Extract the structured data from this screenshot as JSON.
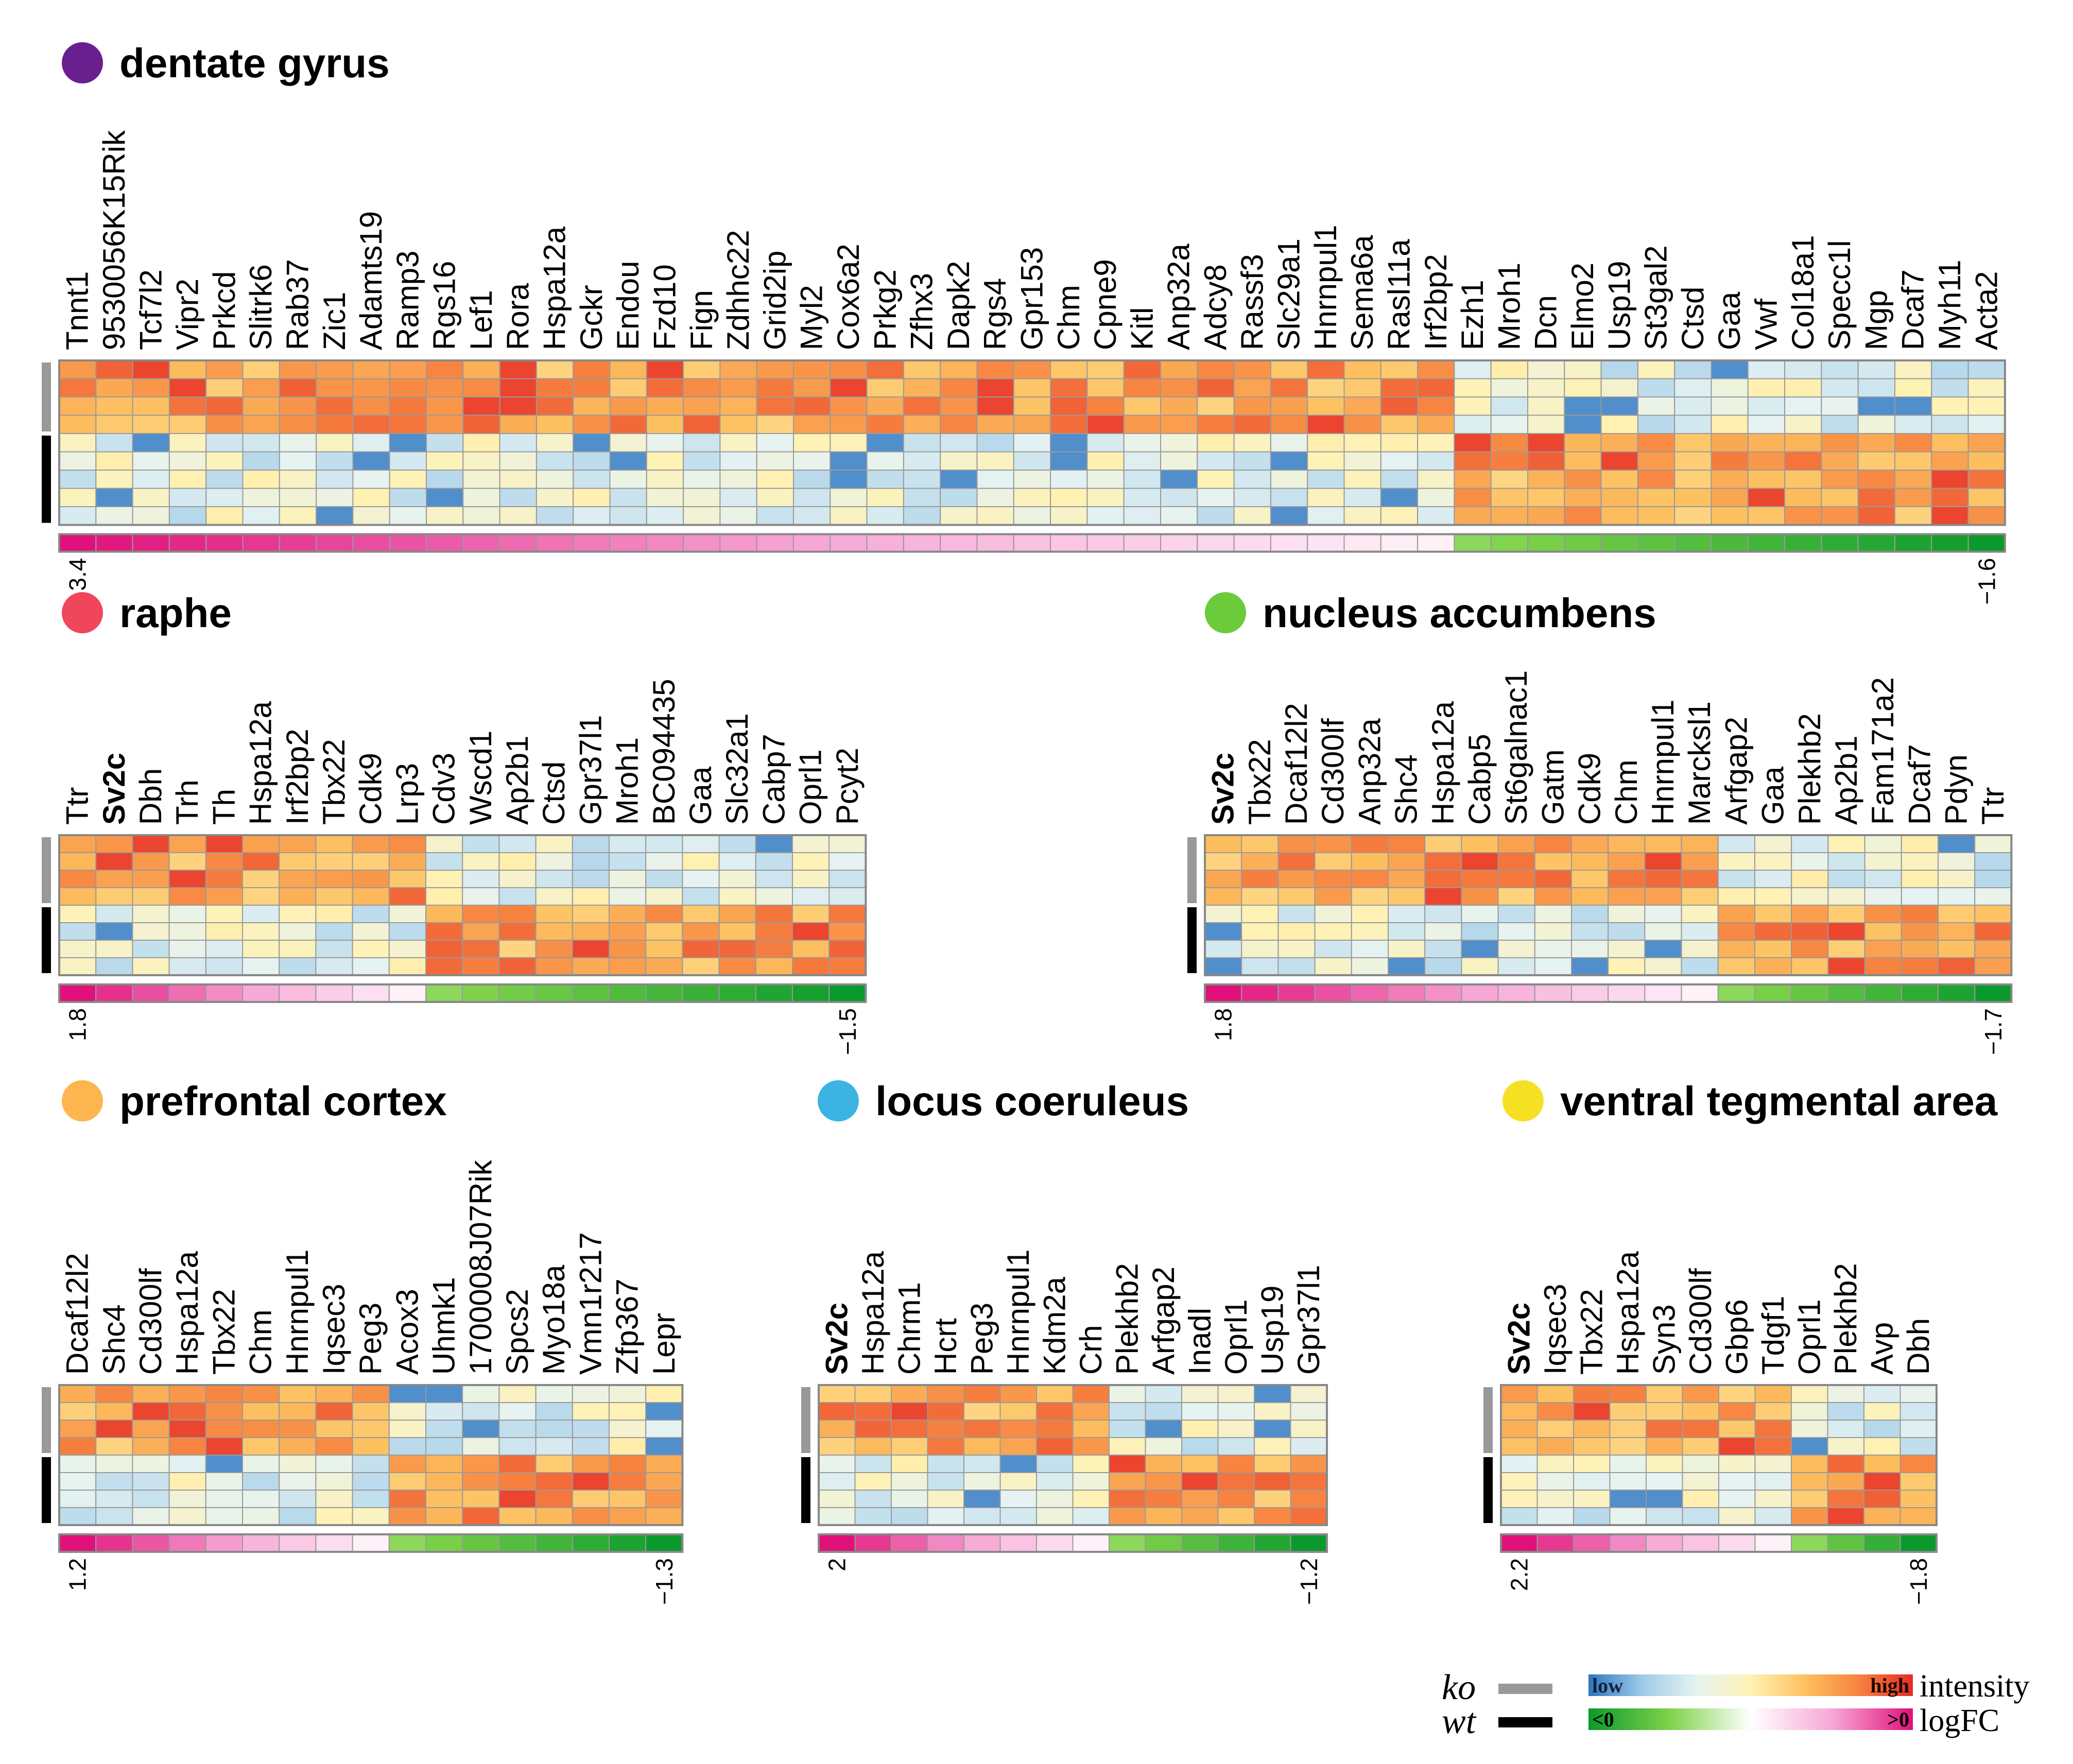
{
  "colors": {
    "intensity_scale": [
      "#2f74c0",
      "#9fcbe8",
      "#e6f3f2",
      "#fff2b4",
      "#fdc160",
      "#f78240",
      "#e62b27"
    ],
    "logfc_scale": [
      "#0a9a2c",
      "#7fd24a",
      "#ffffff",
      "#f7a8d6",
      "#e0117a"
    ],
    "ko_bar": "#999999",
    "wt_bar": "#000000",
    "cell_border": "#9a9a9a"
  },
  "legend": {
    "ko_label": "ko",
    "wt_label": "wt",
    "low_label": "low",
    "high_label": "high",
    "intensity_label": "intensity",
    "neg_label": "<0",
    "pos_label": ">0",
    "logfc_label": "logFC"
  },
  "chart_data": [
    {
      "type": "heatmap",
      "title": "dentate gyrus",
      "title_color": "#6a1f8f",
      "genes": [
        "Tnnt1",
        "9530056K15Rik",
        "Tcf7l2",
        "Vipr2",
        "Prkcd",
        "Slitrk6",
        "Rab37",
        "Zic1",
        "Adamts19",
        "Ramp3",
        "Rgs16",
        "Lef1",
        "Rora",
        "Hspa12a",
        "Gckr",
        "Endou",
        "Fzd10",
        "Fign",
        "Zdhhc22",
        "Grid2ip",
        "Myl2",
        "Cox6a2",
        "Prkg2",
        "Zfhx3",
        "Dapk2",
        "Rgs4",
        "Gpr153",
        "Chm",
        "Cpne9",
        "Kitl",
        "Anp32a",
        "Adcy8",
        "Rassf3",
        "Slc29a1",
        "Hnrnpul1",
        "Sema6a",
        "Rasl11a",
        "Irf2bp2",
        "Ezh1",
        "Mroh1",
        "Dcn",
        "Elmo2",
        "Usp19",
        "St3gal2",
        "Ctsd",
        "Gaa",
        "Vwf",
        "Col18a1",
        "Specc1l",
        "Mgp",
        "Dcaf7",
        "Myh11",
        "Acta2"
      ],
      "bold_genes": [],
      "n_up": 38,
      "groups": [
        "ko",
        "ko",
        "ko",
        "ko",
        "wt",
        "wt",
        "wt",
        "wt",
        "wt"
      ],
      "logfc_range": [
        3.4,
        -1.6
      ],
      "logfc_labels": [
        "3.4",
        "−1.6"
      ]
    },
    {
      "type": "heatmap",
      "title": "raphe",
      "title_color": "#f0465b",
      "genes": [
        "Ttr",
        "Sv2c",
        "Dbh",
        "Trh",
        "Th",
        "Hspa12a",
        "Irf2bp2",
        "Tbx22",
        "Cdk9",
        "Lrp3",
        "Cdv3",
        "Wscd1",
        "Ap2b1",
        "Ctsd",
        "Gpr37l1",
        "Mroh1",
        "BC094435",
        "Gaa",
        "Slc32a1",
        "Cabp7",
        "Oprl1",
        "Pcyt2"
      ],
      "bold_genes": [
        "Sv2c"
      ],
      "n_up": 10,
      "groups": [
        "ko",
        "ko",
        "ko",
        "ko",
        "wt",
        "wt",
        "wt",
        "wt"
      ],
      "logfc_range": [
        1.8,
        -1.5
      ],
      "logfc_labels": [
        "1.8",
        "−1.5"
      ]
    },
    {
      "type": "heatmap",
      "title": "nucleus accumbens",
      "title_color": "#6ccb3a",
      "genes": [
        "Sv2c",
        "Tbx22",
        "Dcaf12l2",
        "Cd300lf",
        "Anp32a",
        "Shc4",
        "Hspa12a",
        "Cabp5",
        "St6galnac1",
        "Gatm",
        "Cdk9",
        "Chm",
        "Hnrnpul1",
        "Marcksl1",
        "Arfgap2",
        "Gaa",
        "Plekhb2",
        "Ap2b1",
        "Fam171a2",
        "Dcaf7",
        "Pdyn",
        "Ttr"
      ],
      "bold_genes": [
        "Sv2c"
      ],
      "n_up": 14,
      "groups": [
        "ko",
        "ko",
        "ko",
        "ko",
        "wt",
        "wt",
        "wt",
        "wt"
      ],
      "logfc_range": [
        1.8,
        -1.7
      ],
      "logfc_labels": [
        "1.8",
        "−1.7"
      ]
    },
    {
      "type": "heatmap",
      "title": "prefrontal cortex",
      "title_color": "#fdb54f",
      "genes": [
        "Dcaf12l2",
        "Shc4",
        "Cd300lf",
        "Hspa12a",
        "Tbx22",
        "Chm",
        "Hnrnpul1",
        "Iqsec3",
        "Peg3",
        "Acox3",
        "Uhmk1",
        "1700008J07Rik",
        "Spcs2",
        "Myo18a",
        "Vmn1r217",
        "Zfp367",
        "Lepr"
      ],
      "bold_genes": [],
      "n_up": 9,
      "groups": [
        "ko",
        "ko",
        "ko",
        "ko",
        "wt",
        "wt",
        "wt",
        "wt"
      ],
      "logfc_range": [
        1.2,
        -1.3
      ],
      "logfc_labels": [
        "1.2",
        "−1.3"
      ]
    },
    {
      "type": "heatmap",
      "title": "locus coeruleus",
      "title_color": "#3bb4e3",
      "genes": [
        "Sv2c",
        "Hspa12a",
        "Chrm1",
        "Hcrt",
        "Peg3",
        "Hnrnpul1",
        "Kdm2a",
        "Crh",
        "Plekhb2",
        "Arfgap2",
        "Inadl",
        "Oprl1",
        "Usp19",
        "Gpr37l1"
      ],
      "bold_genes": [
        "Sv2c"
      ],
      "n_up": 8,
      "groups": [
        "ko",
        "ko",
        "ko",
        "ko",
        "wt",
        "wt",
        "wt",
        "wt"
      ],
      "logfc_range": [
        2,
        -1.2
      ],
      "logfc_labels": [
        "2",
        "−1.2"
      ]
    },
    {
      "type": "heatmap",
      "title": "ventral tegmental area",
      "title_color": "#f6e024",
      "genes": [
        "Sv2c",
        "Iqsec3",
        "Tbx22",
        "Hspa12a",
        "Syn3",
        "Cd300lf",
        "Gbp6",
        "Tdgf1",
        "Oprl1",
        "Plekhb2",
        "Avp",
        "Dbh"
      ],
      "bold_genes": [
        "Sv2c"
      ],
      "n_up": 8,
      "groups": [
        "ko",
        "ko",
        "ko",
        "ko",
        "wt",
        "wt",
        "wt",
        "wt"
      ],
      "logfc_range": [
        2.2,
        -1.8
      ],
      "logfc_labels": [
        "2.2",
        "−1.8"
      ]
    }
  ]
}
